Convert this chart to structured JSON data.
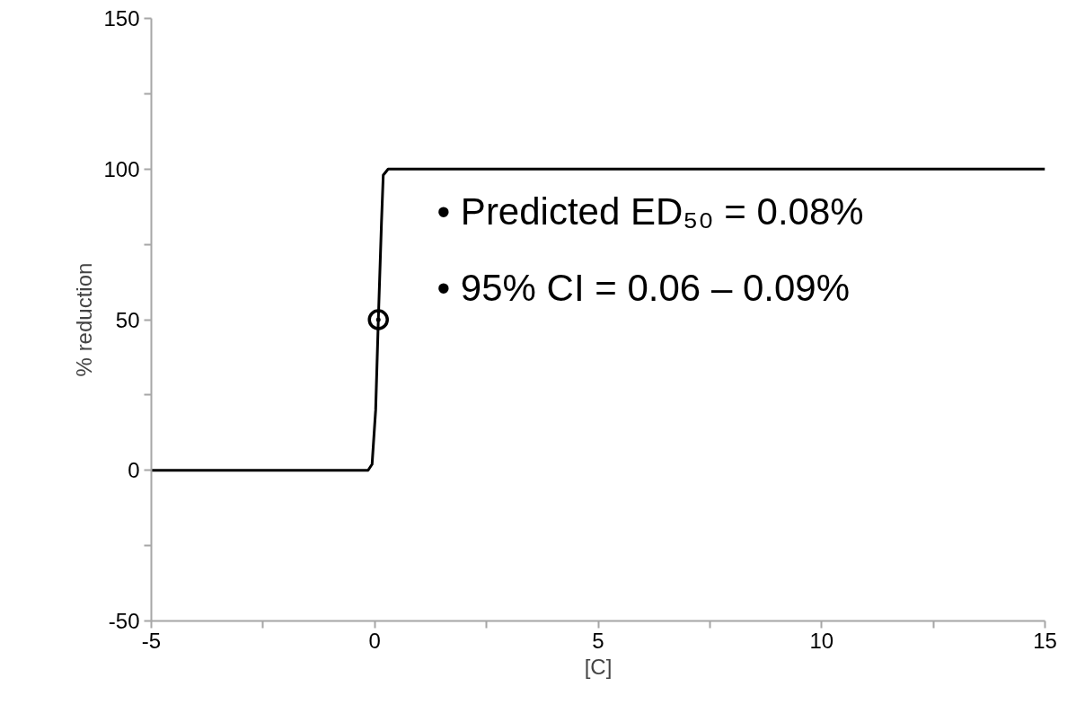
{
  "chart_data": {
    "type": "line",
    "xlabel": "[C]",
    "ylabel": "% reduction",
    "xlim": [
      -5,
      15
    ],
    "ylim": [
      -50,
      150
    ],
    "xticks": [
      -5,
      {
        "value": -2.5,
        "label": null
      },
      0,
      {
        "value": 2.5,
        "label": null
      },
      5,
      {
        "value": 7.5,
        "label": null
      },
      10,
      {
        "value": 12.5,
        "label": null
      },
      15
    ],
    "yticks": [
      -50,
      {
        "value": -25,
        "label": null
      },
      0,
      {
        "value": 25,
        "label": null
      },
      50,
      {
        "value": 75,
        "label": null
      },
      100,
      {
        "value": 125,
        "label": null
      },
      150
    ],
    "grid": false,
    "series": [
      {
        "color": "#000000",
        "marker": "none",
        "x": [
          -5,
          -0.15,
          -0.06,
          0.02,
          0.08,
          0.15,
          0.19,
          0.3,
          15
        ],
        "values": [
          0,
          0,
          2,
          20,
          50,
          82,
          98,
          100,
          100
        ]
      },
      {
        "type": "scatter",
        "color": "#000000",
        "marker": "circle",
        "x": [
          0.08
        ],
        "values": [
          50
        ]
      }
    ],
    "annotations": [
      "•  Predicted ED₅₀ = 0.08%",
      "•  95% CI = 0.06 – 0.09%"
    ]
  }
}
